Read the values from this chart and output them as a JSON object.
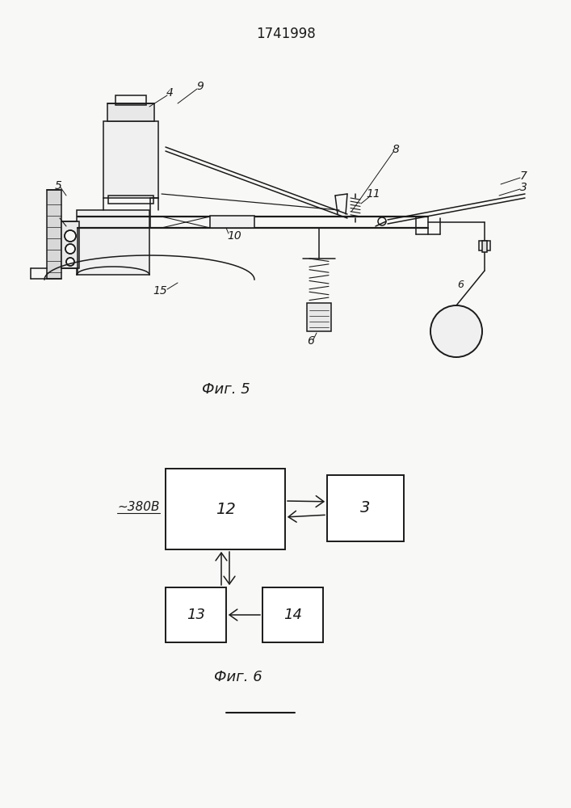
{
  "title": "1741998",
  "fig5_label": "Фиг. 5",
  "fig6_label": "Фиг. 6",
  "bg_color": "#f8f8f6",
  "line_color": "#1a1a1a",
  "lw": 1.1
}
